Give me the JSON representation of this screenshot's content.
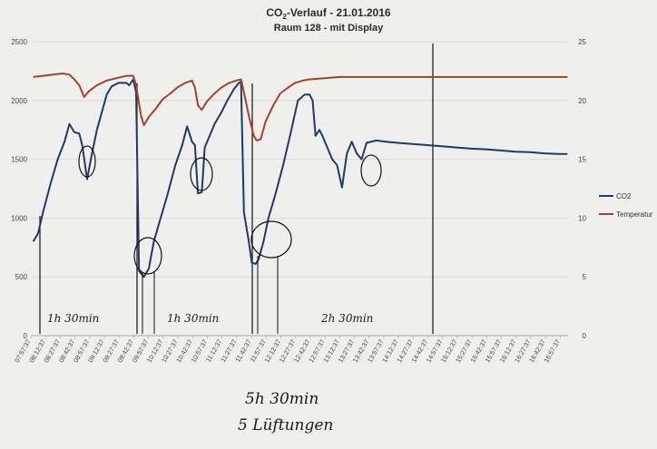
{
  "chart_data": {
    "type": "line",
    "title_prefix": "CO",
    "title_sub": "2",
    "title_suffix": "-Verlauf - 21.01.2016",
    "subtitle": "Raum 128 - mit Display",
    "ylim": [
      0,
      2500
    ],
    "y2lim": [
      0,
      25
    ],
    "y_ticks": [
      0,
      500,
      1000,
      1500,
      2000,
      2500
    ],
    "y2_ticks": [
      0,
      5,
      10,
      15,
      20,
      25
    ],
    "grid": "horizontal",
    "legend_position": "right",
    "x_ticks": [
      "07:57:37",
      "08:12:37",
      "08:27:37",
      "08:42:37",
      "08:57:37",
      "09:12:37",
      "09:27:37",
      "09:42:37",
      "09:57:37",
      "10:12:37",
      "10:27:37",
      "10:42:37",
      "10:57:37",
      "11:12:37",
      "11:27:37",
      "11:42:37",
      "11:57:37",
      "12:12:37",
      "12:27:37",
      "12:42:37",
      "12:57:37",
      "13:12:37",
      "13:27:37",
      "13:42:37",
      "13:57:37",
      "14:12:37",
      "14:27:37",
      "14:42:37",
      "14:57:37",
      "15:12:37",
      "15:27:37",
      "15:42:37",
      "15:57:37",
      "16:12:37",
      "16:27:37",
      "16:42:37",
      "16:57:37"
    ],
    "series": [
      {
        "name": "CO2",
        "axis": "left",
        "color": "#1f3b64",
        "points": [
          [
            "08:00",
            800
          ],
          [
            "08:05",
            870
          ],
          [
            "08:10",
            1050
          ],
          [
            "08:18",
            1300
          ],
          [
            "08:25",
            1500
          ],
          [
            "08:32",
            1650
          ],
          [
            "08:37",
            1800
          ],
          [
            "08:42",
            1730
          ],
          [
            "08:47",
            1720
          ],
          [
            "08:50",
            1620
          ],
          [
            "08:55",
            1330
          ],
          [
            "09:00",
            1550
          ],
          [
            "09:05",
            1750
          ],
          [
            "09:10",
            1900
          ],
          [
            "09:15",
            2050
          ],
          [
            "09:20",
            2120
          ],
          [
            "09:27",
            2150
          ],
          [
            "09:35",
            2150
          ],
          [
            "09:38",
            2130
          ],
          [
            "09:42",
            2180
          ],
          [
            "09:45",
            2070
          ],
          [
            "09:48",
            550
          ],
          [
            "09:53",
            500
          ],
          [
            "09:58",
            570
          ],
          [
            "10:03",
            800
          ],
          [
            "10:10",
            1000
          ],
          [
            "10:17",
            1200
          ],
          [
            "10:25",
            1450
          ],
          [
            "10:32",
            1620
          ],
          [
            "10:37",
            1780
          ],
          [
            "10:42",
            1650
          ],
          [
            "10:45",
            1620
          ],
          [
            "10:48",
            1210
          ],
          [
            "10:52",
            1220
          ],
          [
            "10:55",
            1600
          ],
          [
            "11:00",
            1700
          ],
          [
            "11:05",
            1800
          ],
          [
            "11:12",
            1900
          ],
          [
            "11:18",
            2000
          ],
          [
            "11:25",
            2100
          ],
          [
            "11:30",
            2150
          ],
          [
            "11:32",
            2160
          ],
          [
            "11:35",
            1050
          ],
          [
            "11:40",
            800
          ],
          [
            "11:43",
            620
          ],
          [
            "11:47",
            610
          ],
          [
            "11:50",
            650
          ],
          [
            "11:55",
            800
          ],
          [
            "12:00",
            1000
          ],
          [
            "12:07",
            1200
          ],
          [
            "12:15",
            1450
          ],
          [
            "12:22",
            1700
          ],
          [
            "12:30",
            2000
          ],
          [
            "12:37",
            2050
          ],
          [
            "12:42",
            2050
          ],
          [
            "12:45",
            2000
          ],
          [
            "12:48",
            1700
          ],
          [
            "12:52",
            1750
          ],
          [
            "12:55",
            1700
          ],
          [
            "13:00",
            1600
          ],
          [
            "13:05",
            1500
          ],
          [
            "13:10",
            1450
          ],
          [
            "13:15",
            1260
          ],
          [
            "13:20",
            1550
          ],
          [
            "13:25",
            1650
          ],
          [
            "13:30",
            1550
          ],
          [
            "13:35",
            1500
          ],
          [
            "13:40",
            1640
          ],
          [
            "13:50",
            1660
          ],
          [
            "14:00",
            1650
          ],
          [
            "14:12",
            1640
          ],
          [
            "14:27",
            1630
          ],
          [
            "14:42",
            1620
          ],
          [
            "14:57",
            1610
          ],
          [
            "15:12",
            1600
          ],
          [
            "15:27",
            1590
          ],
          [
            "15:42",
            1585
          ],
          [
            "15:57",
            1575
          ],
          [
            "16:12",
            1565
          ],
          [
            "16:27",
            1560
          ],
          [
            "16:42",
            1550
          ],
          [
            "16:57",
            1545
          ],
          [
            "17:05",
            1545
          ]
        ]
      },
      {
        "name": "Temperatur",
        "axis": "right",
        "color": "#a9402a",
        "points": [
          [
            "08:00",
            22.0
          ],
          [
            "08:10",
            22.1
          ],
          [
            "08:20",
            22.2
          ],
          [
            "08:30",
            22.3
          ],
          [
            "08:37",
            22.2
          ],
          [
            "08:42",
            21.8
          ],
          [
            "08:47",
            21.3
          ],
          [
            "08:52",
            20.3
          ],
          [
            "08:57",
            20.8
          ],
          [
            "09:05",
            21.3
          ],
          [
            "09:15",
            21.7
          ],
          [
            "09:25",
            21.9
          ],
          [
            "09:35",
            22.1
          ],
          [
            "09:42",
            22.1
          ],
          [
            "09:45",
            21.3
          ],
          [
            "09:50",
            18.7
          ],
          [
            "09:53",
            17.9
          ],
          [
            "09:58",
            18.6
          ],
          [
            "10:05",
            19.3
          ],
          [
            "10:12",
            20.1
          ],
          [
            "10:20",
            20.6
          ],
          [
            "10:27",
            21.1
          ],
          [
            "10:35",
            21.5
          ],
          [
            "10:42",
            21.7
          ],
          [
            "10:45",
            21.1
          ],
          [
            "10:48",
            19.6
          ],
          [
            "10:52",
            19.2
          ],
          [
            "10:57",
            19.9
          ],
          [
            "11:05",
            20.6
          ],
          [
            "11:12",
            21.1
          ],
          [
            "11:20",
            21.5
          ],
          [
            "11:27",
            21.7
          ],
          [
            "11:32",
            21.8
          ],
          [
            "11:35",
            20.7
          ],
          [
            "11:40",
            18.7
          ],
          [
            "11:45",
            17.0
          ],
          [
            "11:48",
            16.6
          ],
          [
            "11:52",
            16.7
          ],
          [
            "11:57",
            18.2
          ],
          [
            "12:05",
            19.6
          ],
          [
            "12:12",
            20.6
          ],
          [
            "12:20",
            21.1
          ],
          [
            "12:27",
            21.5
          ],
          [
            "12:35",
            21.7
          ],
          [
            "12:42",
            21.8
          ],
          [
            "12:57",
            21.9
          ],
          [
            "13:12",
            22.0
          ],
          [
            "14:00",
            22.0
          ],
          [
            "17:05",
            22.0
          ]
        ]
      }
    ]
  },
  "annotations": {
    "mark_1": "1h 30min",
    "mark_2": "1h 30min",
    "mark_3": "2h 30min",
    "total_duration": "5h 30min",
    "ventilations": "5 Lüftungen"
  }
}
